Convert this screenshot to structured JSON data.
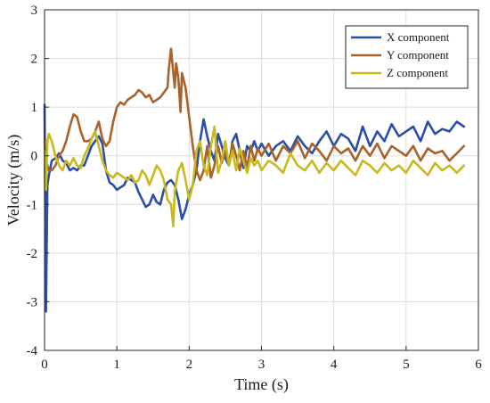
{
  "chart_data": {
    "type": "line",
    "xlabel": "Time (s)",
    "ylabel": "Velocity (m/s)",
    "xlim": [
      0,
      6
    ],
    "ylim": [
      -4,
      3
    ],
    "xticks": [
      0,
      1,
      2,
      3,
      4,
      5,
      6
    ],
    "yticks": [
      -4,
      -3,
      -2,
      -1,
      0,
      1,
      2,
      3
    ],
    "grid": true,
    "legend_position": "top-right",
    "series": [
      {
        "name": "X component",
        "color": "#2b4fa8",
        "x": [
          0,
          0.02,
          0.04,
          0.06,
          0.1,
          0.15,
          0.2,
          0.25,
          0.3,
          0.35,
          0.4,
          0.45,
          0.5,
          0.55,
          0.6,
          0.65,
          0.7,
          0.75,
          0.8,
          0.85,
          0.9,
          0.95,
          1.0,
          1.05,
          1.1,
          1.15,
          1.2,
          1.25,
          1.3,
          1.35,
          1.4,
          1.45,
          1.5,
          1.55,
          1.6,
          1.65,
          1.7,
          1.75,
          1.8,
          1.85,
          1.9,
          1.95,
          2.0,
          2.05,
          2.1,
          2.15,
          2.2,
          2.25,
          2.3,
          2.35,
          2.4,
          2.45,
          2.5,
          2.55,
          2.6,
          2.65,
          2.7,
          2.75,
          2.8,
          2.85,
          2.9,
          2.95,
          3.0,
          3.1,
          3.2,
          3.3,
          3.4,
          3.5,
          3.6,
          3.7,
          3.8,
          3.9,
          4.0,
          4.1,
          4.2,
          4.3,
          4.4,
          4.5,
          4.6,
          4.7,
          4.8,
          4.9,
          5.0,
          5.1,
          5.2,
          5.3,
          5.4,
          5.5,
          5.6,
          5.7,
          5.8
        ],
        "values": [
          1.05,
          -3.2,
          -0.6,
          -0.4,
          -0.1,
          -0.05,
          0.05,
          -0.1,
          -0.15,
          -0.3,
          -0.25,
          -0.3,
          -0.2,
          -0.2,
          0.0,
          0.2,
          0.3,
          0.4,
          0.25,
          -0.3,
          -0.55,
          -0.6,
          -0.7,
          -0.65,
          -0.6,
          -0.45,
          -0.5,
          -0.55,
          -0.75,
          -0.9,
          -1.05,
          -1.0,
          -0.8,
          -0.95,
          -1.0,
          -0.7,
          -0.55,
          -0.5,
          -0.6,
          -0.9,
          -1.3,
          -1.1,
          -0.8,
          -0.6,
          -0.3,
          0.3,
          0.75,
          0.4,
          0.1,
          -0.1,
          0.45,
          0.2,
          -0.05,
          -0.2,
          0.3,
          0.45,
          0.1,
          -0.25,
          0.2,
          0.1,
          0.3,
          0.1,
          0.25,
          0.0,
          0.2,
          0.3,
          0.1,
          0.4,
          0.2,
          0.05,
          0.3,
          0.5,
          0.2,
          0.45,
          0.35,
          0.1,
          0.6,
          0.2,
          0.5,
          0.3,
          0.65,
          0.4,
          0.5,
          0.6,
          0.3,
          0.7,
          0.45,
          0.55,
          0.5,
          0.7,
          0.6
        ]
      },
      {
        "name": "Y component",
        "color": "#a9622a",
        "x": [
          0,
          0.02,
          0.04,
          0.06,
          0.1,
          0.15,
          0.2,
          0.25,
          0.3,
          0.35,
          0.4,
          0.45,
          0.5,
          0.55,
          0.6,
          0.65,
          0.7,
          0.75,
          0.8,
          0.85,
          0.9,
          0.95,
          1.0,
          1.05,
          1.1,
          1.15,
          1.2,
          1.25,
          1.3,
          1.35,
          1.4,
          1.45,
          1.5,
          1.55,
          1.6,
          1.65,
          1.7,
          1.72,
          1.75,
          1.78,
          1.8,
          1.82,
          1.85,
          1.88,
          1.9,
          1.95,
          2.0,
          2.05,
          2.1,
          2.15,
          2.2,
          2.25,
          2.3,
          2.35,
          2.4,
          2.45,
          2.5,
          2.55,
          2.6,
          2.65,
          2.7,
          2.75,
          2.8,
          2.85,
          2.9,
          2.95,
          3.0,
          3.1,
          3.2,
          3.3,
          3.4,
          3.5,
          3.6,
          3.7,
          3.8,
          3.9,
          4.0,
          4.1,
          4.2,
          4.3,
          4.4,
          4.5,
          4.6,
          4.7,
          4.8,
          4.9,
          5.0,
          5.1,
          5.2,
          5.3,
          5.4,
          5.5,
          5.6,
          5.7,
          5.8
        ],
        "values": [
          0.3,
          -0.1,
          -0.2,
          -0.3,
          -0.3,
          -0.2,
          0.0,
          0.1,
          0.3,
          0.6,
          0.85,
          0.8,
          0.5,
          0.3,
          0.3,
          0.35,
          0.5,
          0.7,
          0.35,
          0.2,
          0.3,
          0.7,
          1.0,
          1.1,
          1.05,
          1.15,
          1.2,
          1.25,
          1.35,
          1.3,
          1.2,
          1.25,
          1.1,
          1.15,
          1.2,
          1.3,
          1.4,
          1.8,
          2.2,
          1.7,
          1.4,
          1.9,
          1.6,
          0.9,
          1.7,
          1.4,
          0.8,
          0.2,
          -0.3,
          -0.5,
          -0.3,
          0.2,
          -0.45,
          -0.2,
          0.2,
          -0.15,
          0.1,
          -0.2,
          0.25,
          0.0,
          -0.3,
          0.1,
          -0.25,
          0.2,
          -0.1,
          0.15,
          0.0,
          0.25,
          -0.1,
          0.2,
          0.05,
          0.3,
          -0.05,
          0.25,
          0.1,
          -0.1,
          0.2,
          0.05,
          0.15,
          -0.1,
          0.2,
          0.0,
          0.25,
          -0.05,
          0.2,
          0.1,
          0.0,
          0.2,
          -0.1,
          0.15,
          0.05,
          0.1,
          -0.1,
          0.05,
          0.2
        ]
      },
      {
        "name": "Z component",
        "color": "#c9b91f",
        "x": [
          0,
          0.02,
          0.04,
          0.06,
          0.1,
          0.15,
          0.2,
          0.25,
          0.3,
          0.35,
          0.4,
          0.45,
          0.5,
          0.55,
          0.6,
          0.65,
          0.7,
          0.75,
          0.8,
          0.85,
          0.9,
          0.95,
          1.0,
          1.05,
          1.1,
          1.15,
          1.2,
          1.25,
          1.3,
          1.35,
          1.4,
          1.45,
          1.5,
          1.55,
          1.6,
          1.65,
          1.7,
          1.75,
          1.78,
          1.8,
          1.85,
          1.9,
          1.95,
          2.0,
          2.05,
          2.1,
          2.15,
          2.2,
          2.25,
          2.3,
          2.35,
          2.4,
          2.45,
          2.5,
          2.55,
          2.6,
          2.65,
          2.7,
          2.75,
          2.8,
          2.85,
          2.9,
          2.95,
          3.0,
          3.1,
          3.2,
          3.3,
          3.4,
          3.5,
          3.6,
          3.7,
          3.8,
          3.9,
          4.0,
          4.1,
          4.2,
          4.3,
          4.4,
          4.5,
          4.6,
          4.7,
          4.8,
          4.9,
          5.0,
          5.1,
          5.2,
          5.3,
          5.4,
          5.5,
          5.6,
          5.7,
          5.8
        ],
        "values": [
          0.1,
          -0.7,
          0.3,
          0.45,
          0.3,
          0.0,
          -0.2,
          -0.3,
          -0.1,
          -0.2,
          -0.05,
          -0.2,
          -0.25,
          0.0,
          0.15,
          0.35,
          0.5,
          0.2,
          -0.1,
          -0.3,
          -0.4,
          -0.45,
          -0.35,
          -0.4,
          -0.45,
          -0.5,
          -0.4,
          -0.55,
          -0.5,
          -0.3,
          -0.4,
          -0.6,
          -0.4,
          -0.2,
          -0.3,
          -0.5,
          -0.9,
          -1.0,
          -1.45,
          -0.75,
          -0.3,
          -0.15,
          -0.5,
          -0.9,
          -0.6,
          0.1,
          0.3,
          -0.2,
          -0.4,
          0.2,
          0.6,
          -0.35,
          -0.1,
          0.3,
          -0.2,
          0.1,
          -0.3,
          0.15,
          -0.1,
          -0.35,
          -0.05,
          -0.2,
          -0.1,
          -0.3,
          -0.1,
          -0.2,
          -0.35,
          0.05,
          -0.2,
          -0.3,
          -0.1,
          -0.35,
          -0.15,
          -0.3,
          -0.1,
          -0.25,
          -0.4,
          -0.1,
          -0.2,
          -0.35,
          -0.15,
          -0.3,
          -0.2,
          -0.35,
          -0.1,
          -0.25,
          -0.4,
          -0.15,
          -0.3,
          -0.2,
          -0.35,
          -0.2
        ]
      }
    ]
  }
}
